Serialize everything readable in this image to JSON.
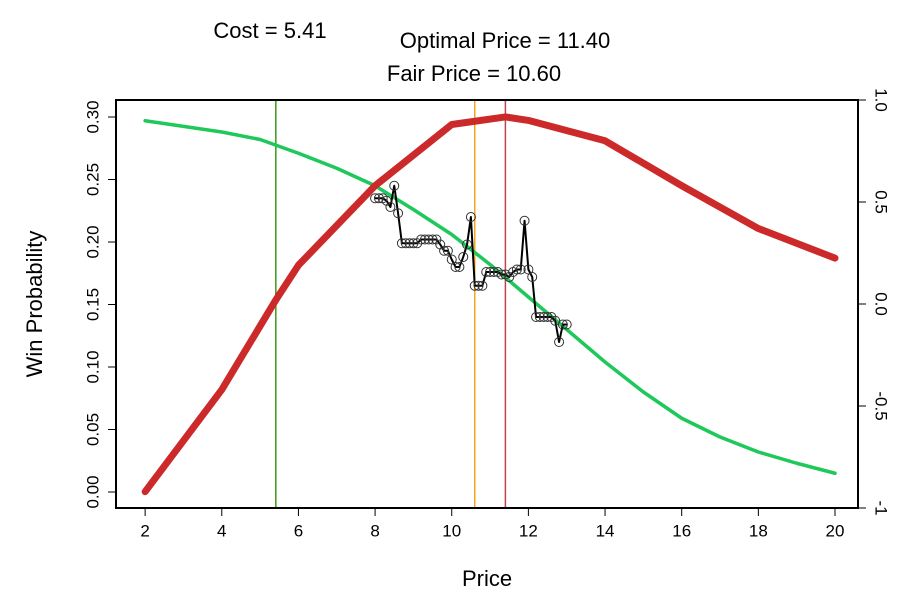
{
  "chart_data": {
    "type": "line",
    "xlabel": "Price",
    "ylabel": "Win Probability",
    "xlim": [
      1.24,
      20.6
    ],
    "xticks": [
      2,
      4,
      6,
      8,
      10,
      12,
      14,
      16,
      18,
      20
    ],
    "ylim": [
      -0.0128,
      0.3136
    ],
    "yticks": [
      {
        "value": 0,
        "label": "0.00"
      },
      {
        "value": 0.05,
        "label": "0.05"
      },
      {
        "value": 0.1,
        "label": "0.10"
      },
      {
        "value": 0.15,
        "label": "0.15"
      },
      {
        "value": 0.2,
        "label": "0.20"
      },
      {
        "value": 0.25,
        "label": "0.25"
      },
      {
        "value": 0.3,
        "label": "0.30"
      }
    ],
    "y2lim": [
      -1,
      1
    ],
    "y2ticks": [
      -1,
      -0.5,
      {
        "value": 0,
        "label": "0.0"
      },
      0.5,
      {
        "value": 1,
        "label": "1.0"
      }
    ],
    "vlines": [
      {
        "label": "Cost = 5.41",
        "value": 5.41,
        "color": "#3a9a1a"
      },
      {
        "label": "Fair Price = 10.60",
        "value": 10.6,
        "color": "#f0a818"
      },
      {
        "label": "Optimal Price = 11.40",
        "value": 11.4,
        "color": "#c0454a"
      }
    ],
    "series": [
      {
        "color": "#1ec85a",
        "width": 3.5,
        "x": [
          2,
          4,
          5,
          6,
          7,
          8,
          9,
          10,
          11,
          12,
          13,
          14,
          15,
          16,
          17,
          18,
          19,
          20
        ],
        "values": [
          0.297,
          0.288,
          0.282,
          0.271,
          0.259,
          0.245,
          0.226,
          0.206,
          0.182,
          0.156,
          0.13,
          0.104,
          0.08,
          0.059,
          0.044,
          0.032,
          0.023,
          0.015
        ]
      },
      {
        "color": "#cc2a2a",
        "width": 7,
        "axis": "y2",
        "x": [
          2,
          4,
          5.41,
          6,
          8,
          10,
          11.4,
          12,
          14,
          16,
          18,
          20
        ],
        "values": [
          -0.92,
          -0.42,
          0.02,
          0.19,
          0.58,
          0.88,
          0.917,
          0.9,
          0.8,
          0.58,
          0.37,
          0.225
        ]
      },
      {
        "color": "#000000",
        "width": 2,
        "markers": true,
        "x": [
          8.0,
          8.1,
          8.2,
          8.3,
          8.4,
          8.5,
          8.6,
          8.7,
          8.8,
          8.9,
          9.0,
          9.1,
          9.2,
          9.3,
          9.4,
          9.5,
          9.6,
          9.7,
          9.8,
          9.9,
          10.0,
          10.1,
          10.2,
          10.3,
          10.4,
          10.5,
          10.6,
          10.7,
          10.8,
          10.9,
          11.0,
          11.1,
          11.2,
          11.3,
          11.4,
          11.5,
          11.6,
          11.7,
          11.8,
          11.9,
          12.0,
          12.1,
          12.2,
          12.3,
          12.4,
          12.5,
          12.6,
          12.7,
          12.8,
          12.9,
          13.0
        ],
        "values": [
          0.235,
          0.235,
          0.235,
          0.233,
          0.228,
          0.245,
          0.223,
          0.199,
          0.199,
          0.199,
          0.199,
          0.199,
          0.202,
          0.202,
          0.202,
          0.202,
          0.202,
          0.198,
          0.193,
          0.193,
          0.186,
          0.18,
          0.18,
          0.188,
          0.198,
          0.22,
          0.165,
          0.165,
          0.165,
          0.176,
          0.176,
          0.176,
          0.176,
          0.174,
          0.174,
          0.172,
          0.176,
          0.178,
          0.178,
          0.217,
          0.178,
          0.172,
          0.14,
          0.14,
          0.14,
          0.14,
          0.14,
          0.137,
          0.12,
          0.134,
          0.134
        ]
      }
    ]
  }
}
